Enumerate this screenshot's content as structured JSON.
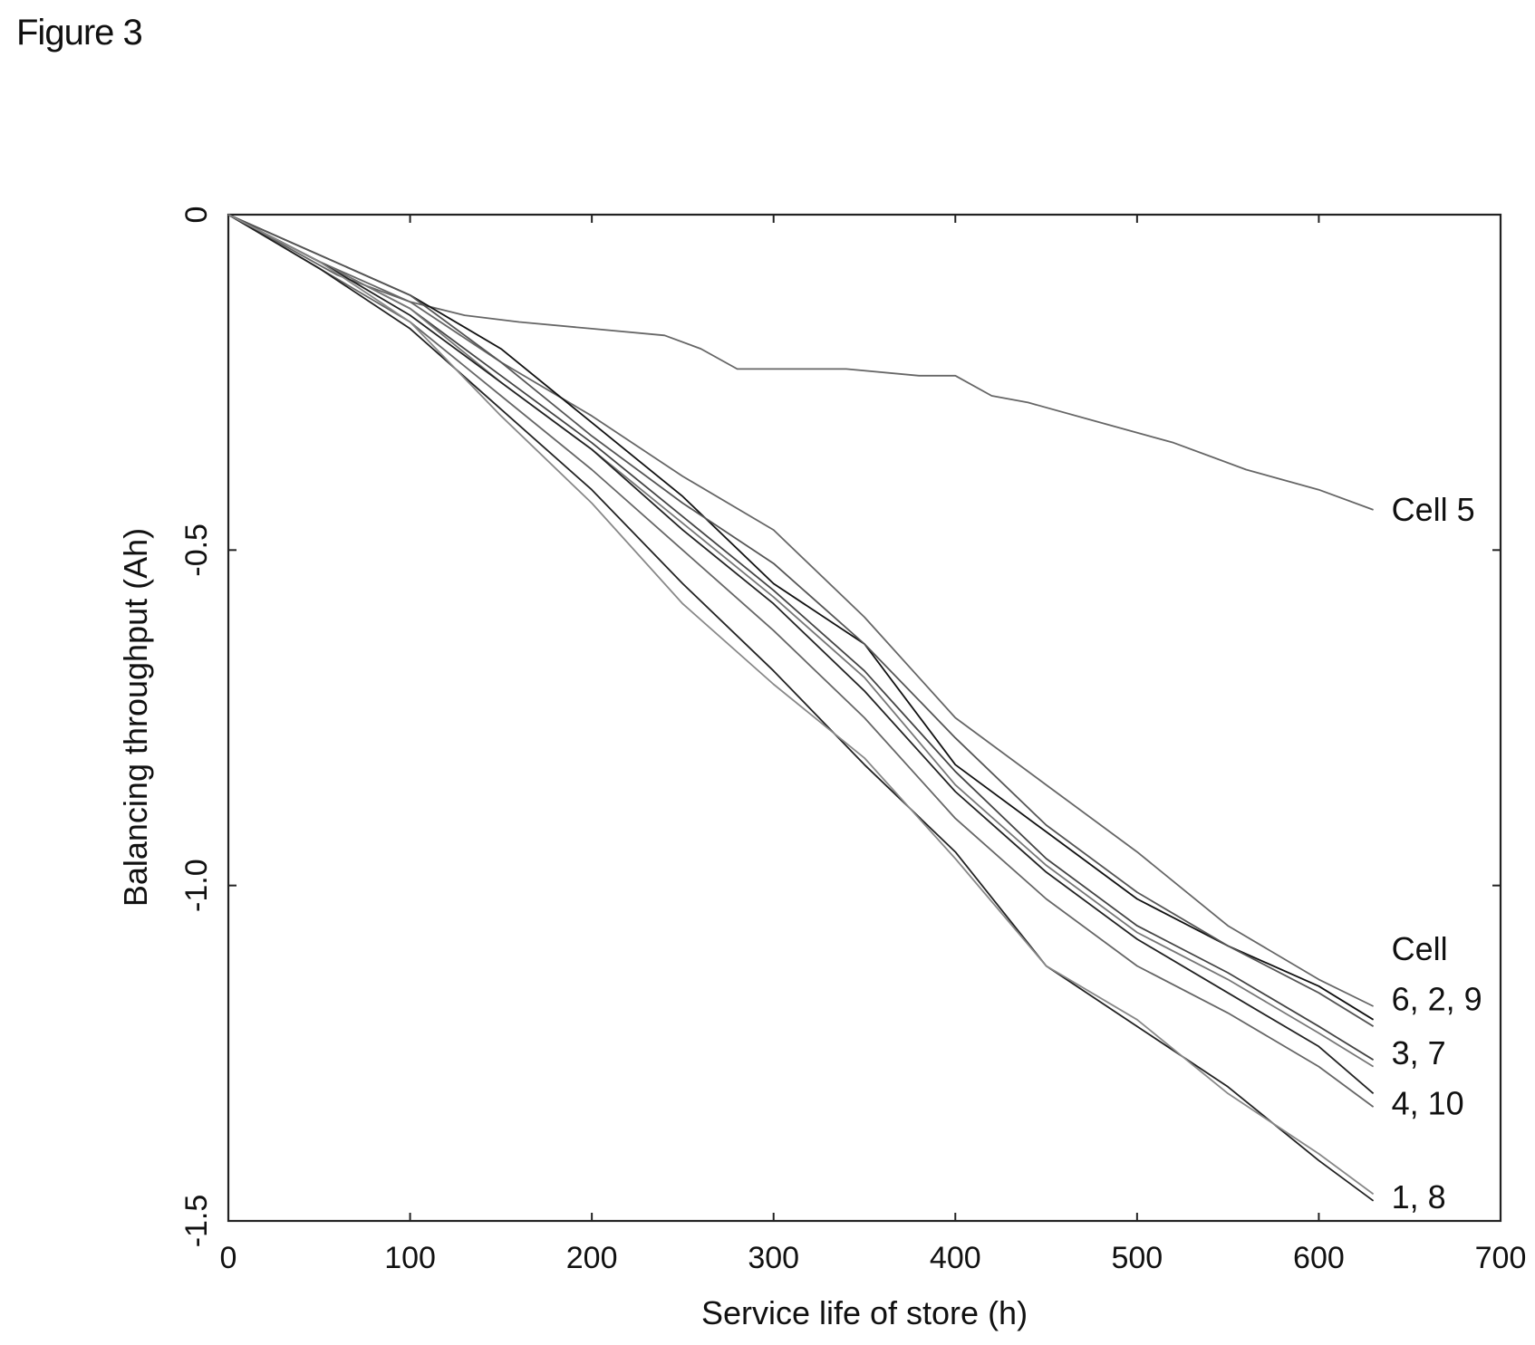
{
  "figure_label": "Figure 3",
  "chart_data": {
    "type": "line",
    "title": "",
    "xlabel": "Service life of store (h)",
    "ylabel": "Balancing throughput (Ah)",
    "xlim": [
      0,
      700
    ],
    "ylim": [
      -1.5,
      0
    ],
    "x_ticks": [
      0,
      100,
      200,
      300,
      400,
      500,
      600,
      700
    ],
    "x_tick_labels": [
      "0",
      "100",
      "200",
      "300",
      "400",
      "500",
      "600",
      "700"
    ],
    "y_ticks": [
      0,
      -0.5,
      -1.0,
      -1.5
    ],
    "y_tick_labels": [
      "0",
      "-0.5",
      "-1.0",
      "-1.5"
    ],
    "grid": false,
    "legend": "none",
    "annotations": [
      {
        "text": "Cell 5",
        "x": 636,
        "y": -0.44
      },
      {
        "text": "Cell",
        "x": 636,
        "y": -1.095
      },
      {
        "text": "6, 2, 9",
        "x": 636,
        "y": -1.17
      },
      {
        "text": "3, 7",
        "x": 636,
        "y": -1.25
      },
      {
        "text": "4, 10",
        "x": 636,
        "y": -1.325
      },
      {
        "text": "1, 8",
        "x": 636,
        "y": -1.465
      }
    ],
    "series": [
      {
        "name": "Cell 5",
        "color": "#666666",
        "x": [
          0,
          20,
          60,
          100,
          130,
          160,
          200,
          240,
          260,
          280,
          320,
          340,
          380,
          400,
          420,
          440,
          480,
          520,
          540,
          560,
          600,
          630
        ],
        "y": [
          0,
          -0.03,
          -0.09,
          -0.13,
          -0.15,
          -0.16,
          -0.17,
          -0.18,
          -0.2,
          -0.23,
          -0.23,
          -0.23,
          -0.24,
          -0.24,
          -0.27,
          -0.28,
          -0.31,
          -0.34,
          -0.36,
          -0.38,
          -0.41,
          -0.44
        ]
      },
      {
        "name": "6",
        "color": "#666666",
        "x": [
          0,
          50,
          100,
          150,
          200,
          250,
          300,
          350,
          400,
          450,
          500,
          550,
          600,
          630
        ],
        "y": [
          0,
          -0.07,
          -0.13,
          -0.22,
          -0.3,
          -0.39,
          -0.47,
          -0.6,
          -0.75,
          -0.85,
          -0.95,
          -1.06,
          -1.14,
          -1.18
        ]
      },
      {
        "name": "2",
        "color": "#111111",
        "x": [
          0,
          50,
          100,
          150,
          200,
          250,
          300,
          350,
          400,
          450,
          500,
          550,
          600,
          630
        ],
        "y": [
          0,
          -0.06,
          -0.12,
          -0.2,
          -0.31,
          -0.42,
          -0.55,
          -0.64,
          -0.82,
          -0.92,
          -1.02,
          -1.09,
          -1.15,
          -1.2
        ]
      },
      {
        "name": "9",
        "color": "#555555",
        "x": [
          0,
          50,
          100,
          150,
          200,
          250,
          300,
          350,
          400,
          450,
          500,
          550,
          600,
          630
        ],
        "y": [
          0,
          -0.06,
          -0.12,
          -0.22,
          -0.33,
          -0.43,
          -0.52,
          -0.64,
          -0.78,
          -0.91,
          -1.01,
          -1.09,
          -1.16,
          -1.21
        ]
      },
      {
        "name": "3",
        "color": "#444444",
        "x": [
          0,
          50,
          100,
          150,
          200,
          250,
          300,
          350,
          400,
          450,
          500,
          550,
          600,
          630
        ],
        "y": [
          0,
          -0.07,
          -0.14,
          -0.24,
          -0.34,
          -0.45,
          -0.56,
          -0.68,
          -0.83,
          -0.96,
          -1.06,
          -1.13,
          -1.21,
          -1.26
        ]
      },
      {
        "name": "7",
        "color": "#777777",
        "x": [
          0,
          50,
          100,
          150,
          200,
          250,
          300,
          350,
          400,
          450,
          500,
          550,
          600,
          630
        ],
        "y": [
          0,
          -0.07,
          -0.14,
          -0.25,
          -0.35,
          -0.46,
          -0.57,
          -0.69,
          -0.85,
          -0.97,
          -1.07,
          -1.14,
          -1.22,
          -1.27
        ]
      },
      {
        "name": "4",
        "color": "#222222",
        "x": [
          0,
          50,
          100,
          150,
          200,
          250,
          300,
          350,
          400,
          450,
          500,
          550,
          600,
          630
        ],
        "y": [
          0,
          -0.07,
          -0.15,
          -0.25,
          -0.35,
          -0.47,
          -0.58,
          -0.71,
          -0.86,
          -0.98,
          -1.08,
          -1.16,
          -1.24,
          -1.31
        ]
      },
      {
        "name": "10",
        "color": "#666666",
        "x": [
          0,
          50,
          100,
          150,
          200,
          250,
          300,
          350,
          400,
          450,
          500,
          550,
          600,
          630
        ],
        "y": [
          0,
          -0.08,
          -0.16,
          -0.27,
          -0.38,
          -0.5,
          -0.62,
          -0.75,
          -0.9,
          -1.02,
          -1.12,
          -1.19,
          -1.27,
          -1.33
        ]
      },
      {
        "name": "1",
        "color": "#222222",
        "x": [
          0,
          50,
          100,
          150,
          200,
          250,
          300,
          350,
          400,
          450,
          500,
          550,
          600,
          630
        ],
        "y": [
          0,
          -0.08,
          -0.17,
          -0.29,
          -0.41,
          -0.55,
          -0.68,
          -0.82,
          -0.95,
          -1.12,
          -1.21,
          -1.3,
          -1.41,
          -1.47
        ]
      },
      {
        "name": "8",
        "color": "#888888",
        "x": [
          0,
          50,
          100,
          150,
          200,
          250,
          300,
          350,
          400,
          450,
          500,
          550,
          600,
          630
        ],
        "y": [
          0,
          -0.07,
          -0.16,
          -0.3,
          -0.43,
          -0.58,
          -0.7,
          -0.81,
          -0.96,
          -1.12,
          -1.2,
          -1.31,
          -1.4,
          -1.46
        ]
      }
    ]
  }
}
